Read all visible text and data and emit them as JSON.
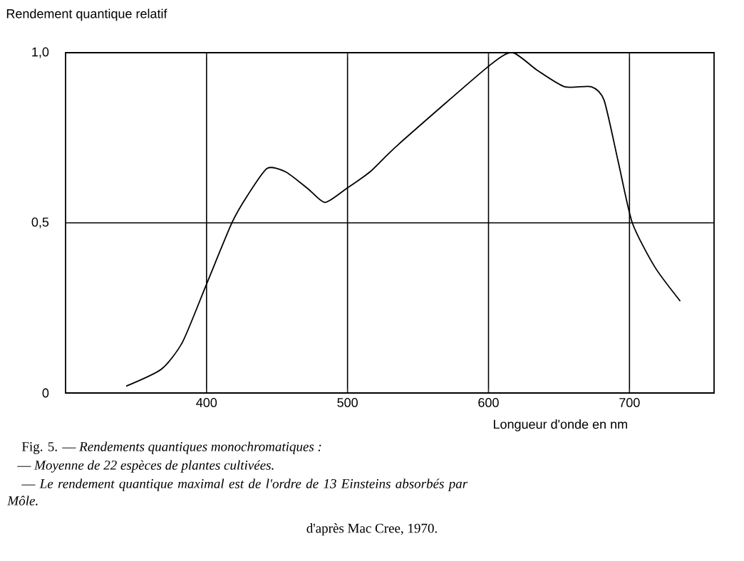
{
  "chart_data": {
    "type": "line",
    "ylabel": "Rendement quantique relatif",
    "xlabel": "Longueur d'onde en nm",
    "x": [
      343,
      368,
      383,
      400,
      418,
      429,
      443,
      456,
      472,
      484,
      499,
      516,
      536,
      600,
      617,
      634,
      654,
      673,
      682,
      692,
      702,
      718,
      736
    ],
    "series": [
      {
        "color": "#000000",
        "values": [
          0.02,
          0.07,
          0.15,
          0.32,
          0.5,
          0.58,
          0.66,
          0.65,
          0.6,
          0.56,
          0.6,
          0.65,
          0.73,
          0.96,
          1.0,
          0.95,
          0.9,
          0.9,
          0.86,
          0.68,
          0.5,
          0.37,
          0.27
        ]
      }
    ],
    "xlim": [
      300,
      760
    ],
    "ylim": [
      0,
      1.0
    ],
    "xticks": [
      400,
      500,
      600,
      700
    ],
    "yticks": [
      0,
      {
        "value": 0.5,
        "label": "0,5"
      },
      {
        "value": 1.0,
        "label": "1,0"
      }
    ],
    "grid": true,
    "marker": "none",
    "line_style": "solid",
    "annotations": [
      "Fig. 5. — *Rendements quantiques monochromatiques :*",
      "— *Moyenne de 22 espèces de plantes cultivées.*",
      "— *Le rendement quantique maximal est de l'ordre de 13 Einsteins absorbés par Môle.*",
      "d'après Mac Cree, 1970."
    ]
  }
}
